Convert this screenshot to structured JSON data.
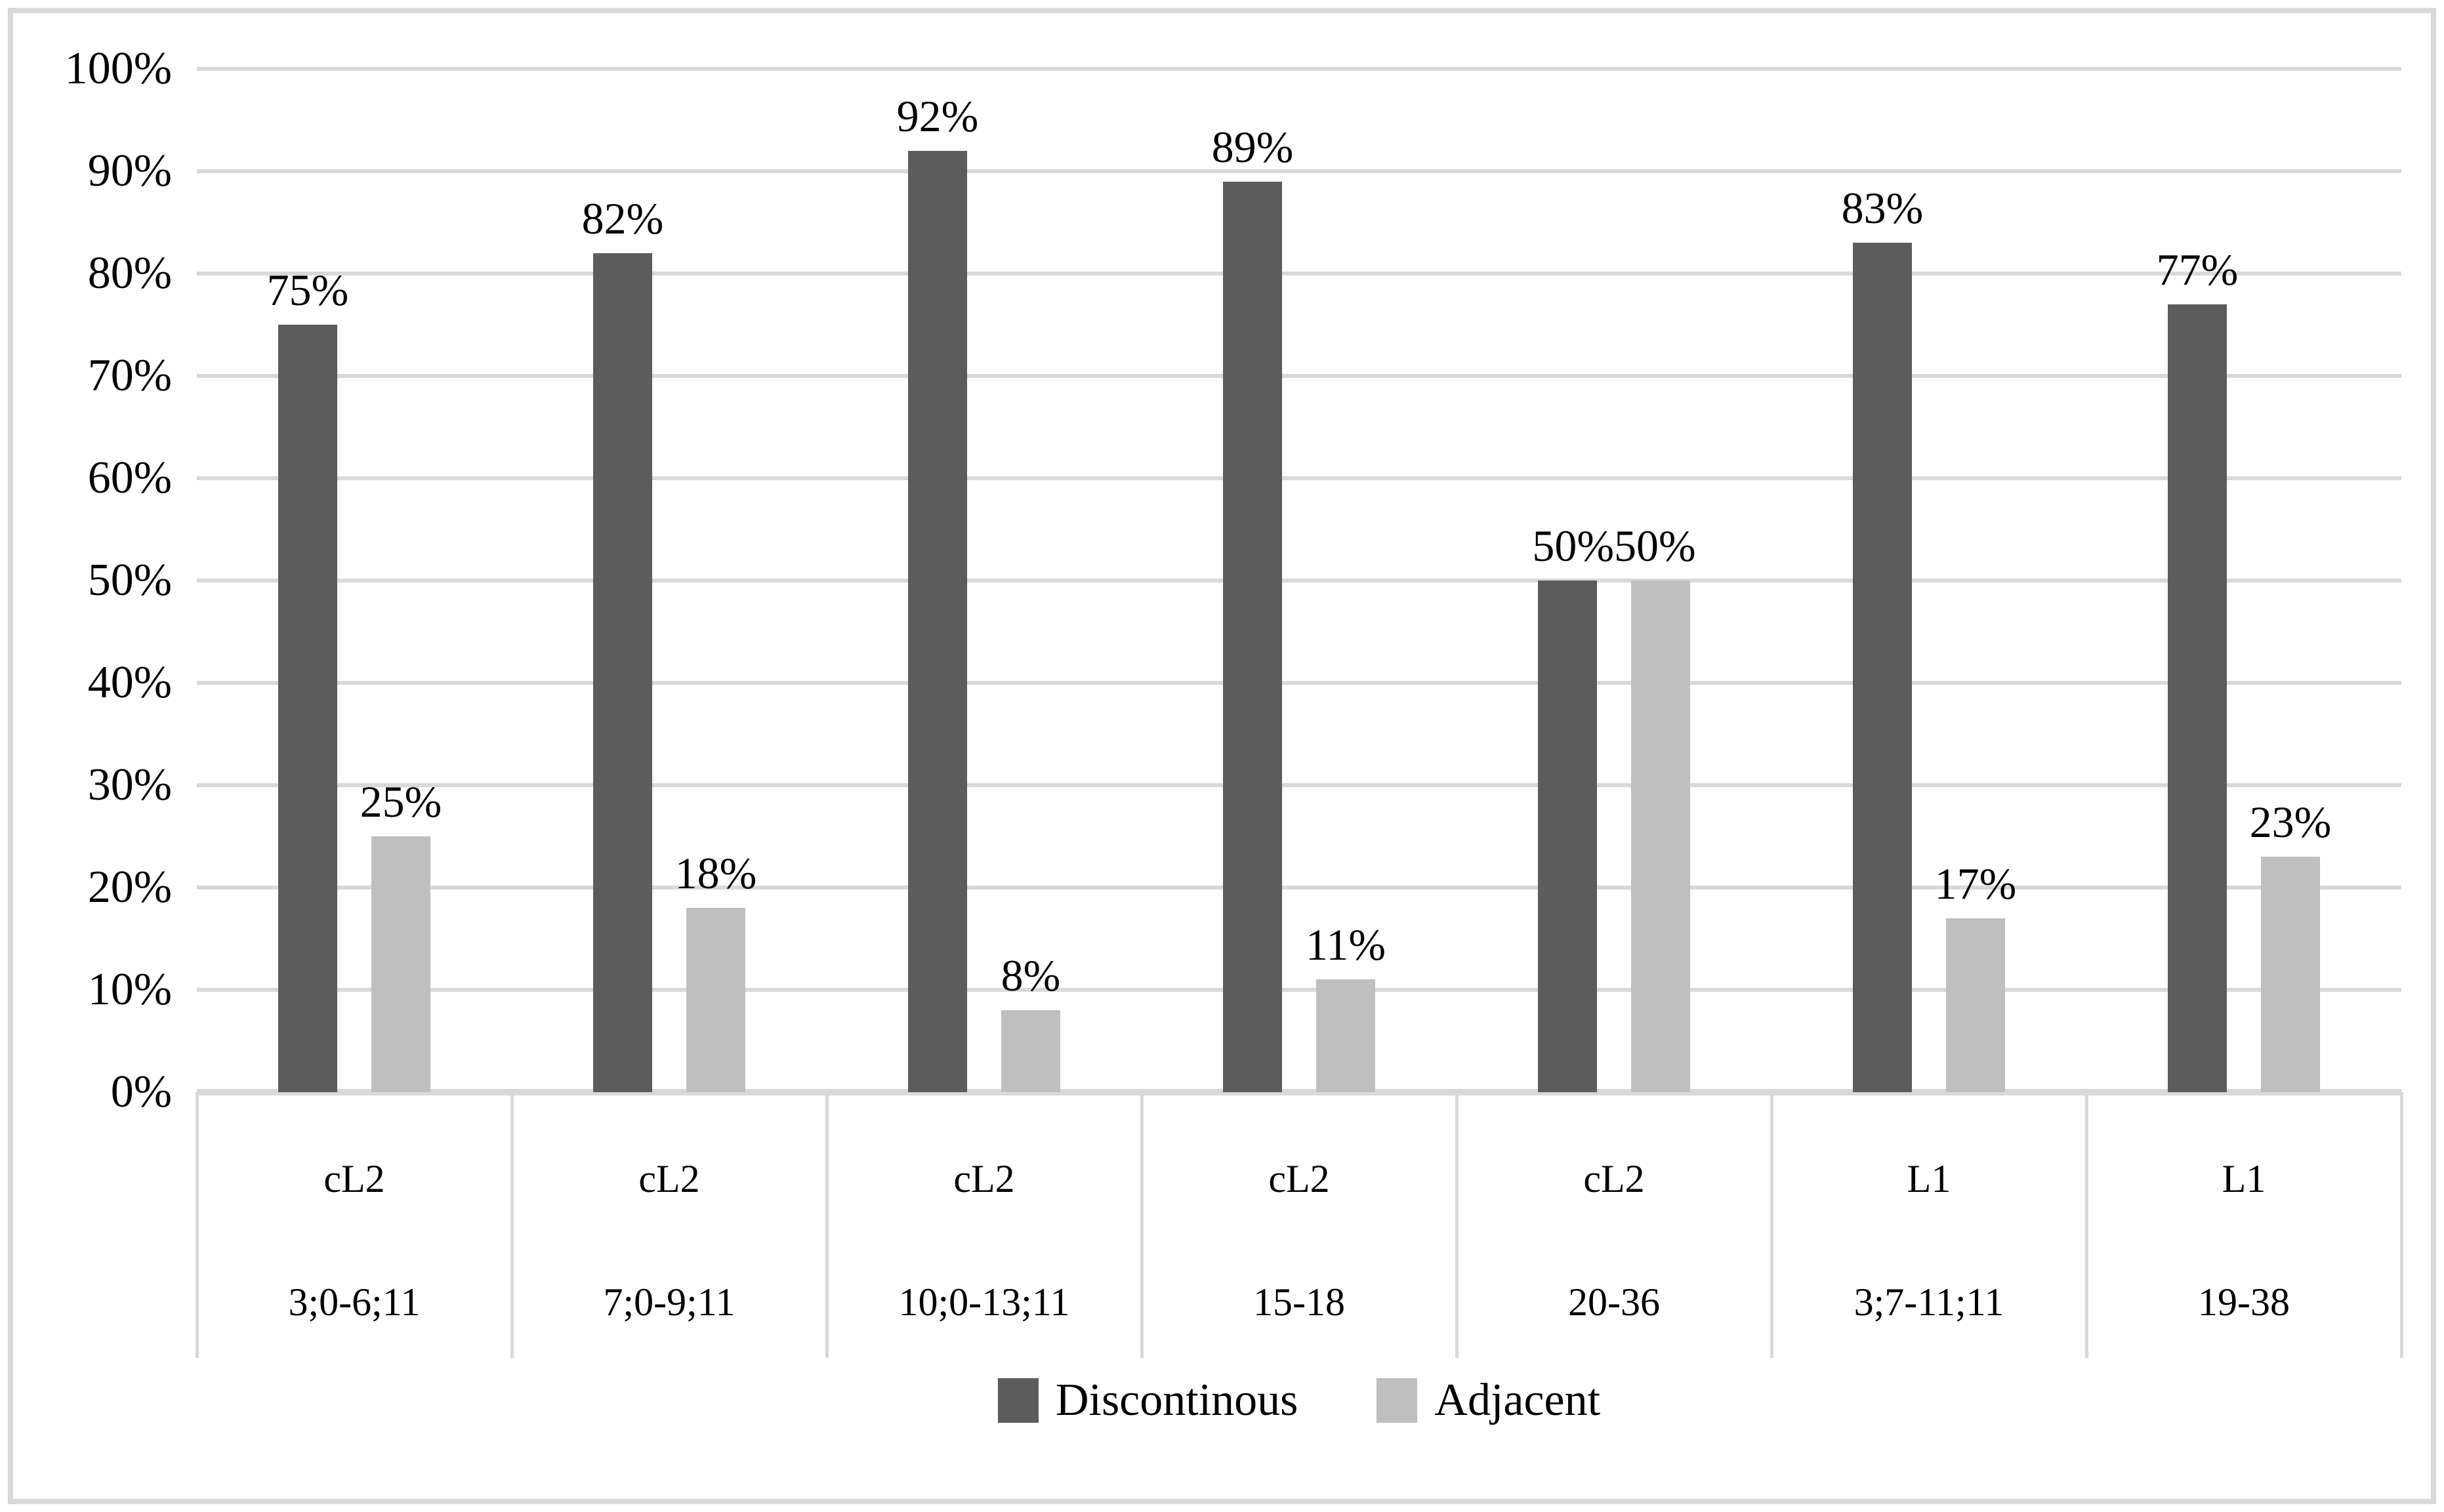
{
  "chart": {
    "background": "#ffffff",
    "border_color": "#d9d9d9",
    "grid_color": "#d9d9d9",
    "axis_line_color": "#d9d9d9",
    "text_color": "#000000"
  },
  "chart_data": {
    "type": "bar",
    "title": "",
    "xlabel": "",
    "ylabel": "",
    "categories": [
      {
        "group": "cL2",
        "range": "3;0-6;11"
      },
      {
        "group": "cL2",
        "range": "7;0-9;11"
      },
      {
        "group": "cL2",
        "range": "10;0-13;11"
      },
      {
        "group": "cL2",
        "range": "15-18"
      },
      {
        "group": "cL2",
        "range": "20-36"
      },
      {
        "group": "L1",
        "range": "3;7-11;11"
      },
      {
        "group": "L1",
        "range": "19-38"
      }
    ],
    "series": [
      {
        "name": "Discontinous",
        "color": "#5c5c5c",
        "values": [
          75,
          82,
          92,
          89,
          50,
          83,
          77
        ]
      },
      {
        "name": "Adjacent",
        "color": "#bfbfbf",
        "values": [
          25,
          18,
          8,
          11,
          50,
          17,
          23
        ]
      }
    ],
    "value_label_suffix": "%",
    "ytick_label_suffix": "%",
    "ylim": [
      0,
      100
    ],
    "ytick_step": 10,
    "grid": true,
    "legend_position": "bottom"
  }
}
